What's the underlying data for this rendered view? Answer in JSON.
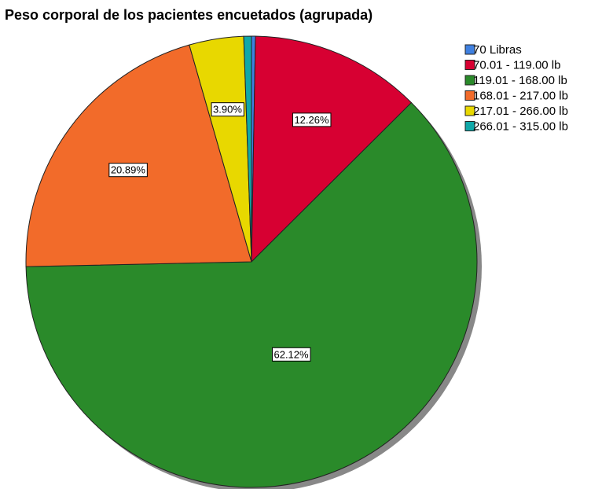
{
  "chart_data": {
    "type": "pie",
    "title": "Peso corporal de los pacientes encuetados (agrupada)",
    "categories": [
      "70 Libras",
      "70.01 - 119.00 lb",
      "119.01 - 168.00 lb",
      "168.01 - 217.00 lb",
      "217.01 - 266.00 lb",
      "266.01 - 315.00 lb"
    ],
    "values": [
      0.28,
      12.26,
      62.12,
      20.89,
      3.9,
      0.55
    ],
    "value_labels": [
      null,
      "12.26%",
      "62.12%",
      "20.89%",
      "3.90%",
      null
    ],
    "colors": [
      "#3f80e0",
      "#d70032",
      "#2a8a2a",
      "#f26b2a",
      "#e8d800",
      "#10a8a8"
    ],
    "legend": "top-right"
  }
}
